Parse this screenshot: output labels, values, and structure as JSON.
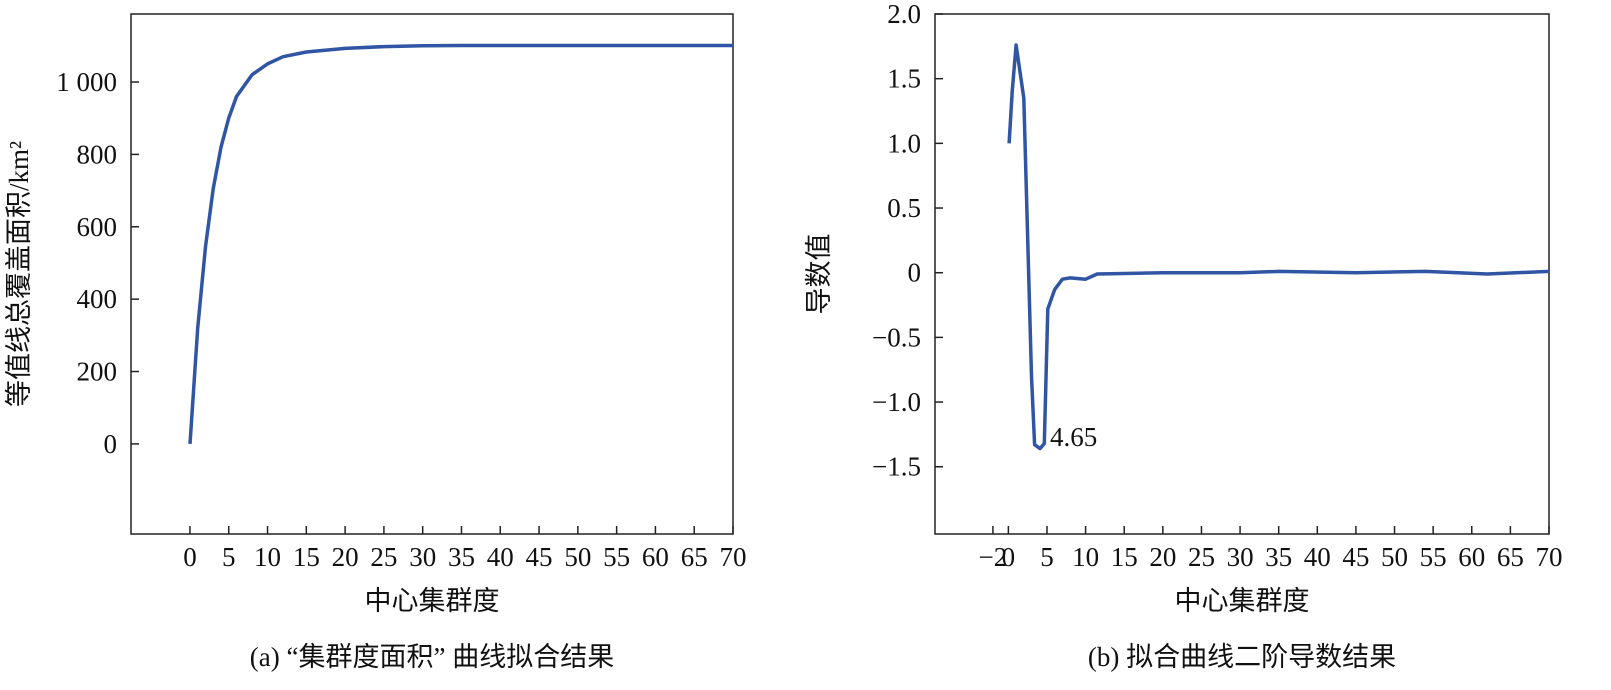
{
  "chart_data": [
    {
      "type": "line",
      "caption": "(a) “集群度面积” 曲线拟合结果",
      "xlabel": "中心集群度",
      "ylabel": "等值线总覆盖面积/km²",
      "x": [
        0,
        1,
        2,
        3,
        4,
        5,
        6,
        8,
        10,
        12,
        15,
        20,
        25,
        30,
        35,
        40,
        50,
        60,
        70
      ],
      "values": [
        0,
        320,
        545,
        705,
        820,
        900,
        960,
        1020,
        1050,
        1070,
        1083,
        1093,
        1098,
        1100,
        1101,
        1101,
        1101,
        1101,
        1101
      ],
      "color": "#2f55a4",
      "xlim": [
        -7.6,
        70
      ],
      "xticks": [
        0,
        5,
        10,
        15,
        20,
        25,
        30,
        35,
        40,
        45,
        50,
        55,
        60,
        65,
        70
      ],
      "ylim": [
        -249,
        1188
      ],
      "yticks": [
        0,
        200,
        400,
        600,
        800,
        {
          "value": 1000,
          "label": "1 000"
        }
      ]
    },
    {
      "type": "line",
      "caption": "(b) 拟合曲线二阶导数结果",
      "xlabel": "中心集群度",
      "ylabel": "导数值",
      "annotation": "4.65",
      "x": [
        0.1,
        0.5,
        1,
        2,
        3,
        3.4,
        4.1,
        4.65,
        5.1,
        6,
        7,
        8,
        10,
        11.5,
        20,
        30,
        35,
        45,
        54,
        62,
        70
      ],
      "values": [
        1.0,
        1.4,
        1.76,
        1.35,
        -0.8,
        -1.33,
        -1.36,
        -1.32,
        -0.28,
        -0.13,
        -0.05,
        -0.04,
        -0.05,
        -0.01,
        0,
        0,
        0.01,
        0,
        0.01,
        -0.01,
        0.01
      ],
      "color": "#2f55a4",
      "xlim": [
        -9.5,
        70
      ],
      "xticks": [
        {
          "value": -2,
          "label": "−2"
        },
        0,
        5,
        10,
        15,
        20,
        25,
        30,
        35,
        40,
        45,
        50,
        55,
        60,
        65,
        70
      ],
      "ylim": [
        -2.02,
        2.0
      ],
      "yticks": [
        {
          "value": -1.5,
          "label": "−1.5"
        },
        {
          "value": -1,
          "label": "−1.0"
        },
        {
          "value": -0.5,
          "label": "−0.5"
        },
        0,
        0.5,
        {
          "value": 1,
          "label": "1.0"
        },
        1.5,
        {
          "value": 2,
          "label": "2.0"
        }
      ]
    }
  ]
}
